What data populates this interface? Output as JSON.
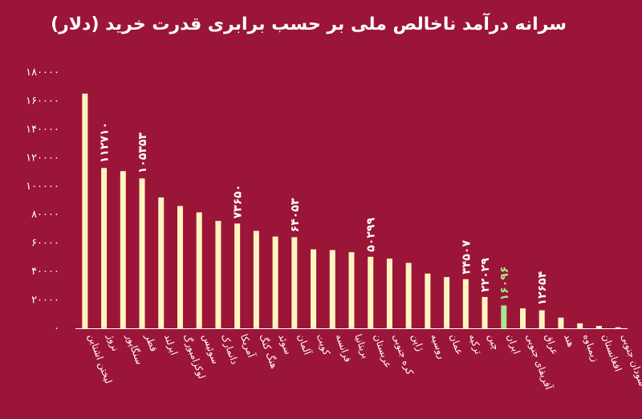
{
  "chart_data": {
    "type": "bar",
    "title": "سرانه درآمد ناخالص ملی بر حسب برابری قدرت خرید (دلار)",
    "xlabel": "",
    "ylabel": "",
    "ylim": [
      0,
      180000
    ],
    "yticks": [
      0,
      20000,
      40000,
      60000,
      80000,
      100000,
      120000,
      140000,
      160000,
      180000
    ],
    "ytick_labels": [
      "۰",
      "۲۰۰۰۰",
      "۴۰۰۰۰",
      "۶۰۰۰۰",
      "۸۰۰۰۰",
      "۱۰۰۰۰۰",
      "۱۲۰۰۰۰",
      "۱۴۰۰۰۰",
      "۱۶۰۰۰۰",
      "۱۸۰۰۰۰"
    ],
    "grid": false,
    "legend": "none",
    "categories": [
      "لیختن اشتاین",
      "نروژ",
      "سنگاپور",
      "قطر",
      "ایرلند",
      "لوکزامبورگ",
      "سوئیس",
      "دانمارک",
      "آمریکا",
      "هنگ کنگ",
      "سوئد",
      "آلمان",
      "کویت",
      "فرانسه",
      "بریتانیا",
      "عربستان",
      "کره جنوبی",
      "ژاپن",
      "روسیه",
      "عمان",
      "ترکیه",
      "چین",
      "ایران",
      "آفریقای جنوبی",
      "عراق",
      "هند",
      "زیمباوه",
      "افغانستان",
      "سودان جنوبی"
    ],
    "values": [
      165000,
      112710,
      110500,
      105353,
      92000,
      86000,
      81500,
      75500,
      73650,
      68500,
      64500,
      64053,
      55500,
      55000,
      53500,
      50299,
      49000,
      46000,
      38500,
      36000,
      34507,
      22029,
      16096,
      14000,
      12654,
      7500,
      3500,
      1700,
      700
    ],
    "data_labels": [
      {
        "index": 1,
        "text": "۱۱۲۷۱۰"
      },
      {
        "index": 3,
        "text": "۱۰۵۳۵۳"
      },
      {
        "index": 8,
        "text": "۷۳۶۵۰"
      },
      {
        "index": 11,
        "text": "۶۴۰۵۳"
      },
      {
        "index": 15,
        "text": "۵۰۲۹۹"
      },
      {
        "index": 20,
        "text": "۳۴۵۰۷"
      },
      {
        "index": 21,
        "text": "۲۲۰۲۹"
      },
      {
        "index": 22,
        "text": "۱۶۰۹۶"
      },
      {
        "index": 24,
        "text": "۱۲۶۵۴"
      }
    ],
    "highlight_index": 22,
    "colors": {
      "background": "#9b1538",
      "bar": "#fdf5c0",
      "highlight_bar": "#a6e88c",
      "label": "#ffffff",
      "highlight_label": "#a6e88c",
      "axis": "#ffffff"
    }
  }
}
